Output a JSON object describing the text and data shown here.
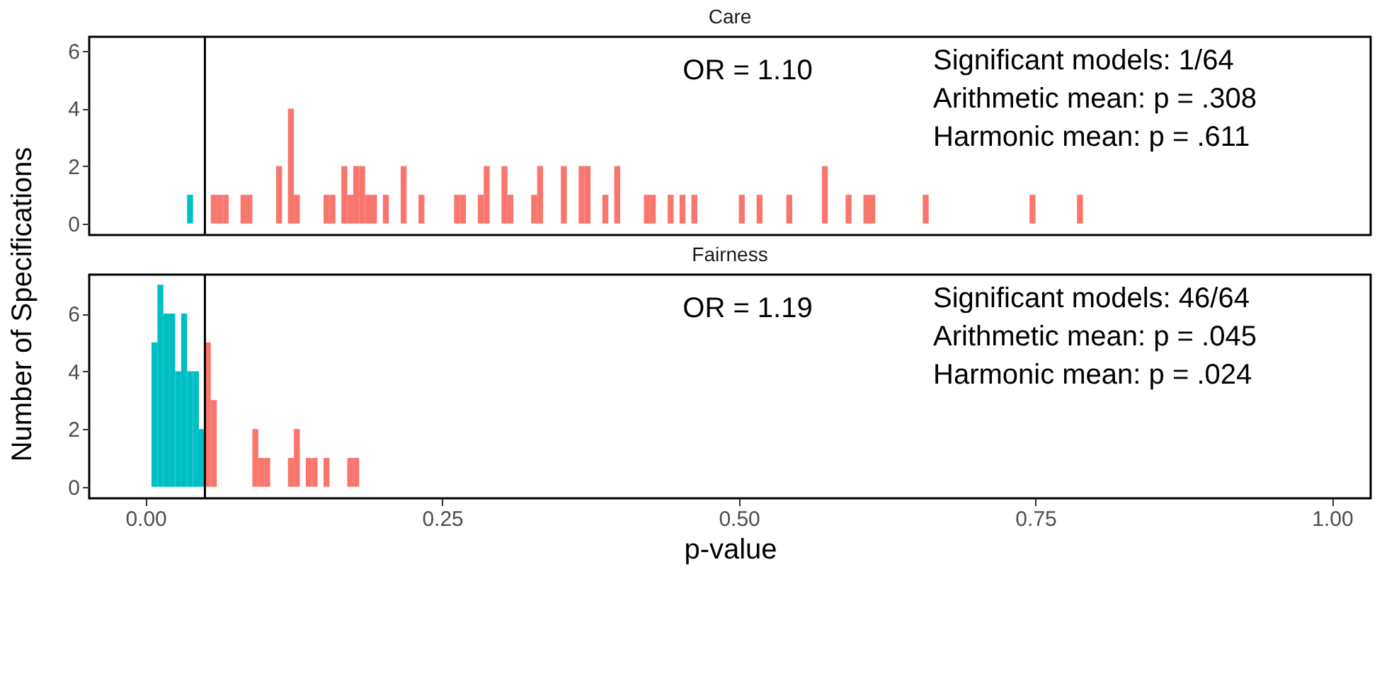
{
  "chart_data": [
    {
      "type": "bar",
      "title": "Care",
      "ylabel": "Number of Specifications",
      "xlim": [
        -0.0475,
        1.0325
      ],
      "ylim": [
        -0.4,
        6.5
      ],
      "yticks": [
        0,
        2,
        4,
        6
      ],
      "tick_labels": "y",
      "grid": false,
      "series": [
        {
          "color": "#00bfc4",
          "x": [
            0.0375
          ],
          "values": [
            1
          ]
        },
        {
          "color": "#f8766d",
          "x": [
            0.0575,
            0.0625,
            0.0675,
            0.0825,
            0.0875,
            0.1125,
            0.1225,
            0.1275,
            0.1525,
            0.1575,
            0.1675,
            0.1725,
            0.1775,
            0.1825,
            0.1875,
            0.1925,
            0.2025,
            0.2175,
            0.2325,
            0.2625,
            0.2675,
            0.2825,
            0.2875,
            0.3025,
            0.3075,
            0.3275,
            0.3325,
            0.3525,
            0.3675,
            0.3725,
            0.3875,
            0.3975,
            0.4225,
            0.4275,
            0.4425,
            0.4525,
            0.4625,
            0.5025,
            0.5175,
            0.5425,
            0.5725,
            0.5925,
            0.6075,
            0.6125,
            0.6575,
            0.7475,
            0.7875
          ],
          "values": [
            1,
            1,
            1,
            1,
            1,
            2,
            4,
            1,
            1,
            1,
            2,
            1,
            2,
            2,
            1,
            1,
            1,
            2,
            1,
            1,
            1,
            1,
            2,
            2,
            1,
            1,
            2,
            2,
            2,
            2,
            1,
            2,
            1,
            1,
            1,
            1,
            1,
            1,
            1,
            1,
            2,
            1,
            1,
            1,
            1,
            1,
            1
          ]
        }
      ],
      "ref_lines": [
        {
          "axis": "x",
          "value": 0.05,
          "color": "#000000"
        }
      ],
      "annotations": [
        "OR = 1.10",
        "Significant models: 1/64",
        "Arithmetic mean: p = .308",
        "Harmonic mean: p = .611"
      ]
    },
    {
      "type": "bar",
      "title": "Fairness",
      "xlabel": "p-value",
      "xlim": [
        -0.0475,
        1.0325
      ],
      "ylim": [
        -0.4,
        7.35
      ],
      "xticks": [
        {
          "value": 0,
          "label": "0.00"
        },
        0.25,
        {
          "value": 0.5,
          "label": "0.50"
        },
        0.75,
        {
          "value": 1,
          "label": "1.00"
        }
      ],
      "yticks": [
        0,
        2,
        4,
        6
      ],
      "grid": false,
      "series": [
        {
          "color": "#00bfc4",
          "x": [
            0.0075,
            0.0125,
            0.0175,
            0.0225,
            0.0275,
            0.0325,
            0.0375,
            0.0425,
            0.0475
          ],
          "values": [
            5,
            7,
            6,
            6,
            4,
            6,
            4,
            4,
            2
          ]
        },
        {
          "color": "#f8766d",
          "x": [
            0.0525,
            0.0575,
            0.0925,
            0.0975,
            0.1025,
            0.1225,
            0.1275,
            0.1375,
            0.1425,
            0.1525,
            0.1725,
            0.1775
          ],
          "values": [
            5,
            3,
            2,
            1,
            1,
            1,
            2,
            1,
            1,
            1,
            1,
            1
          ]
        }
      ],
      "ref_lines": [
        {
          "axis": "x",
          "value": 0.05,
          "color": "#000000"
        }
      ],
      "annotations": [
        "OR = 1.19",
        "Significant models: 46/64",
        "Arithmetic mean: p = .045",
        "Harmonic mean: p = .024"
      ]
    }
  ]
}
